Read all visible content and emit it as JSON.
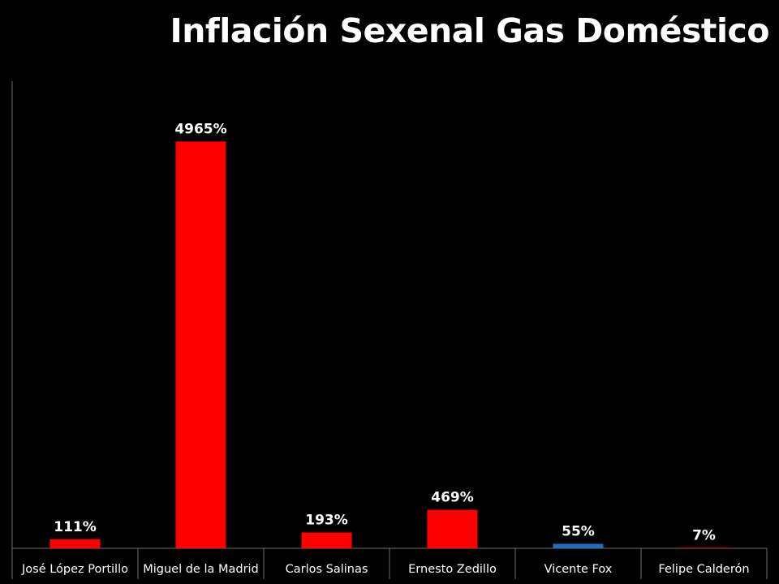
{
  "title": "Inflación Sexenal Gas Doméstico",
  "chart_data": {
    "type": "bar",
    "title": "Inflación Sexenal Gas Doméstico",
    "categories": [
      "José López Portillo",
      "Miguel de la Madrid",
      "Carlos Salinas",
      "Ernesto Zedillo",
      "Vicente Fox",
      "Felipe Calderón"
    ],
    "values": [
      111,
      4965,
      193,
      469,
      55,
      7
    ],
    "data_labels": [
      "111%",
      "4965%",
      "193%",
      "469%",
      "55%",
      "7%"
    ],
    "bar_colors": [
      "#ff0000",
      "#ff0000",
      "#ff0000",
      "#ff0000",
      "#1f6fbf",
      "#ff0000"
    ],
    "ylim": [
      0,
      5900
    ],
    "grid": false,
    "legend": "none"
  }
}
